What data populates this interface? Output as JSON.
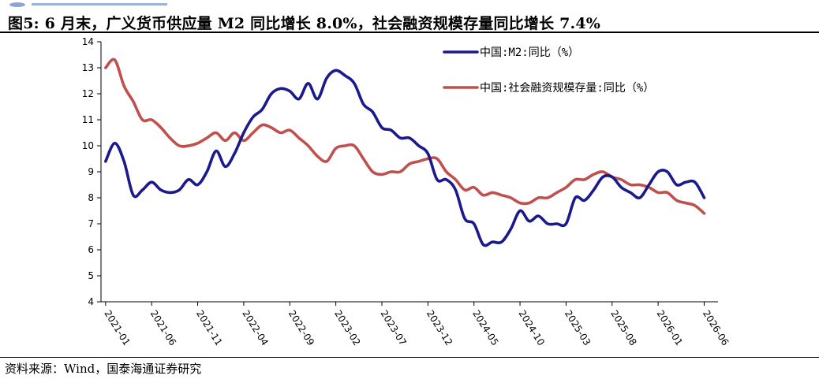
{
  "header": {
    "title": "图5:  6 月末，广义货币供应量 M2 同比增长 8.0%，社会融资规模存量同比增长 7.4%",
    "source": "资料来源：Wind，国泰海通证券研究",
    "logo_color": "#5b7fc3"
  },
  "chart_data": {
    "type": "line",
    "title": "",
    "xlabel": "",
    "ylabel": "",
    "ylim": [
      4,
      14
    ],
    "yticks": [
      4,
      5,
      6,
      7,
      8,
      9,
      10,
      11,
      12,
      13,
      14
    ],
    "x_tick_labels": [
      "2021-01",
      "2021-06",
      "2021-11",
      "2022-04",
      "2022-09",
      "2023-02",
      "2023-07",
      "2023-12",
      "2024-05",
      "2024-10",
      "2025-03",
      "2025-08",
      "2026-01",
      "2026-06"
    ],
    "grid": false,
    "legend_position": "top-right",
    "x": [
      "2021-01",
      "2021-02",
      "2021-03",
      "2021-04",
      "2021-05",
      "2021-06",
      "2021-07",
      "2021-08",
      "2021-09",
      "2021-10",
      "2021-11",
      "2021-12",
      "2022-01",
      "2022-02",
      "2022-03",
      "2022-04",
      "2022-05",
      "2022-06",
      "2022-07",
      "2022-08",
      "2022-09",
      "2022-10",
      "2022-11",
      "2022-12",
      "2023-01",
      "2023-02",
      "2023-03",
      "2023-04",
      "2023-05",
      "2023-06",
      "2023-07",
      "2023-08",
      "2023-09",
      "2023-10",
      "2023-11",
      "2023-12",
      "2024-01",
      "2024-02",
      "2024-03",
      "2024-04",
      "2024-05",
      "2024-06",
      "2024-07",
      "2024-08",
      "2024-09",
      "2024-10",
      "2024-11",
      "2024-12",
      "2025-01",
      "2025-02",
      "2025-03",
      "2025-04",
      "2025-05",
      "2025-06",
      "2025-07",
      "2025-08",
      "2025-09",
      "2025-10",
      "2025-11",
      "2025-12",
      "2026-01",
      "2026-02",
      "2026-03",
      "2026-04",
      "2026-05",
      "2026-06"
    ],
    "series": [
      {
        "name": "中国:M2:同比（%）",
        "color": "#1a1a8c",
        "values": [
          9.4,
          10.1,
          9.4,
          8.1,
          8.3,
          8.6,
          8.3,
          8.2,
          8.3,
          8.7,
          8.5,
          9.0,
          9.8,
          9.2,
          9.7,
          10.5,
          11.1,
          11.4,
          12.0,
          12.2,
          12.1,
          11.8,
          12.4,
          11.8,
          12.6,
          12.9,
          12.7,
          12.4,
          11.6,
          11.3,
          10.7,
          10.6,
          10.3,
          10.3,
          10.0,
          9.7,
          8.7,
          8.7,
          8.3,
          7.2,
          7.0,
          6.2,
          6.3,
          6.3,
          6.8,
          7.5,
          7.1,
          7.3,
          7.0,
          7.0,
          7.0,
          8.0,
          7.9,
          8.3,
          8.8,
          8.8,
          8.4,
          8.2,
          8.0,
          8.5,
          9.0,
          9.0,
          8.5,
          8.6,
          8.6,
          8.0
        ]
      },
      {
        "name": "中国:社会融资规模存量:同比（%）",
        "color": "#c0504d",
        "values": [
          13.0,
          13.3,
          12.3,
          11.7,
          11.0,
          11.0,
          10.7,
          10.3,
          10.0,
          10.0,
          10.1,
          10.3,
          10.5,
          10.2,
          10.5,
          10.2,
          10.5,
          10.8,
          10.7,
          10.5,
          10.6,
          10.3,
          10.0,
          9.6,
          9.4,
          9.9,
          10.0,
          10.0,
          9.5,
          9.0,
          8.9,
          9.0,
          9.0,
          9.3,
          9.4,
          9.5,
          9.5,
          9.0,
          8.7,
          8.3,
          8.4,
          8.1,
          8.2,
          8.1,
          8.0,
          7.8,
          7.8,
          8.0,
          8.0,
          8.2,
          8.4,
          8.7,
          8.7,
          8.9,
          9.0,
          8.8,
          8.7,
          8.5,
          8.5,
          8.4,
          8.2,
          8.2,
          7.9,
          7.8,
          7.7,
          7.4
        ]
      }
    ]
  }
}
